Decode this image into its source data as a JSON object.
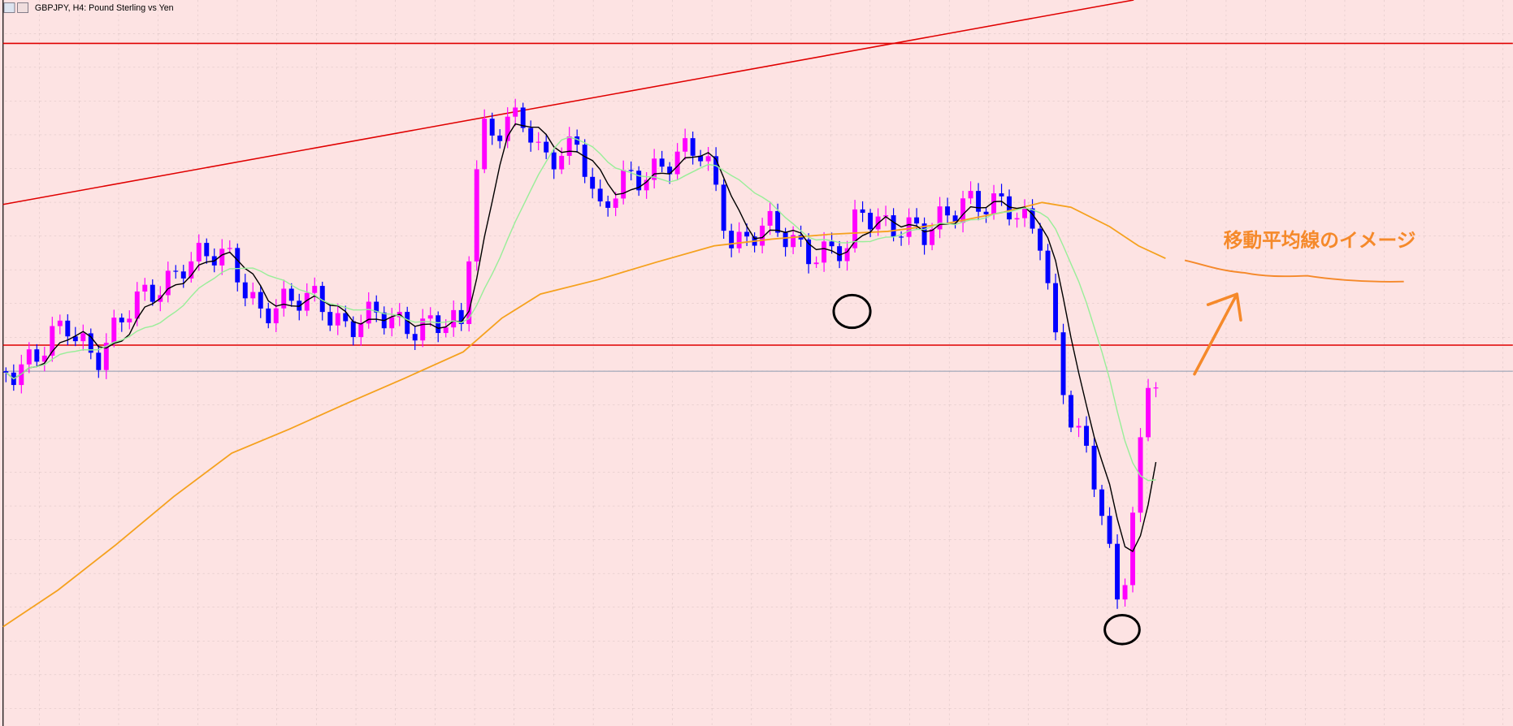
{
  "window": {
    "title": "GBPJPY, H4: Pound Sterling vs Yen"
  },
  "annotation": {
    "label": "移動平均線のイメージ"
  }
}
